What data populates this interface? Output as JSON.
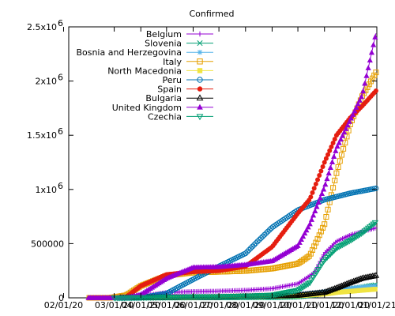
{
  "chart_data": {
    "type": "line",
    "title": "Confirmed",
    "xlabel": "",
    "ylabel": "",
    "ylim": [
      0,
      2500000
    ],
    "x_range": [
      "2020-01-08",
      "2021-01-01"
    ],
    "grid": false,
    "legend_position": "top-left",
    "y_ticks": [
      {
        "value": 0,
        "label": "0"
      },
      {
        "value": 500000,
        "label": "500000"
      },
      {
        "value": 1000000,
        "label": "1x10",
        "exp": "6"
      },
      {
        "value": 1500000,
        "label": "1.5x10",
        "exp": "6"
      },
      {
        "value": 2000000,
        "label": "2x10",
        "exp": "6"
      },
      {
        "value": 2500000,
        "label": "2.5x10",
        "exp": "6"
      }
    ],
    "x_ticks": [
      {
        "date": "2020-01-02",
        "label": "02/01/20"
      },
      {
        "date": "2020-03-01",
        "label": "03/01/20"
      },
      {
        "date": "2020-04-01",
        "label": "04/01/20"
      },
      {
        "date": "2020-05-01",
        "label": "05/01/20"
      },
      {
        "date": "2020-06-01",
        "label": "06/01/20"
      },
      {
        "date": "2020-07-01",
        "label": "07/01/20"
      },
      {
        "date": "2020-08-01",
        "label": "08/01/20"
      },
      {
        "date": "2020-09-01",
        "label": "09/01/20"
      },
      {
        "date": "2020-10-01",
        "label": "10/01/20"
      },
      {
        "date": "2020-11-01",
        "label": "11/01/20"
      },
      {
        "date": "2020-12-01",
        "label": "12/01/20"
      },
      {
        "date": "2021-01-01",
        "label": "01/01/21"
      }
    ],
    "series": [
      {
        "name": "Belgium",
        "color": "#9400d3",
        "marker": "plus",
        "points": [
          [
            "2020-03-01",
            0
          ],
          [
            "2020-03-20",
            2800
          ],
          [
            "2020-04-10",
            26000
          ],
          [
            "2020-05-01",
            49000
          ],
          [
            "2020-06-01",
            58000
          ],
          [
            "2020-07-01",
            62000
          ],
          [
            "2020-08-01",
            70000
          ],
          [
            "2020-09-01",
            85000
          ],
          [
            "2020-10-01",
            130000
          ],
          [
            "2020-10-20",
            230000
          ],
          [
            "2020-11-01",
            410000
          ],
          [
            "2020-11-15",
            520000
          ],
          [
            "2020-12-01",
            580000
          ],
          [
            "2020-12-15",
            610000
          ],
          [
            "2020-12-31",
            645000
          ]
        ]
      },
      {
        "name": "Slovenia",
        "color": "#009e73",
        "marker": "x",
        "points": [
          [
            "2020-03-05",
            0
          ],
          [
            "2020-04-15",
            1300
          ],
          [
            "2020-07-01",
            1700
          ],
          [
            "2020-09-01",
            2700
          ],
          [
            "2020-10-01",
            8000
          ],
          [
            "2020-10-20",
            25000
          ],
          [
            "2020-11-01",
            40000
          ],
          [
            "2020-11-15",
            60000
          ],
          [
            "2020-12-01",
            80000
          ],
          [
            "2020-12-15",
            100000
          ],
          [
            "2020-12-31",
            120000
          ]
        ]
      },
      {
        "name": "Bosnia and Herzegovina",
        "color": "#56b4e9",
        "marker": "star",
        "points": [
          [
            "2020-03-05",
            0
          ],
          [
            "2020-05-01",
            1800
          ],
          [
            "2020-07-01",
            6000
          ],
          [
            "2020-08-01",
            13000
          ],
          [
            "2020-09-01",
            22000
          ],
          [
            "2020-10-01",
            30000
          ],
          [
            "2020-11-01",
            55000
          ],
          [
            "2020-11-15",
            75000
          ],
          [
            "2020-12-01",
            90000
          ],
          [
            "2020-12-15",
            100000
          ],
          [
            "2020-12-31",
            110000
          ]
        ]
      },
      {
        "name": "Italy",
        "color": "#e69f00",
        "marker": "square-open",
        "points": [
          [
            "2020-02-01",
            0
          ],
          [
            "2020-02-25",
            300
          ],
          [
            "2020-03-15",
            24000
          ],
          [
            "2020-04-01",
            110000
          ],
          [
            "2020-05-01",
            205000
          ],
          [
            "2020-06-01",
            233000
          ],
          [
            "2020-07-01",
            240000
          ],
          [
            "2020-08-01",
            248000
          ],
          [
            "2020-09-01",
            270000
          ],
          [
            "2020-10-01",
            315000
          ],
          [
            "2020-10-15",
            390000
          ],
          [
            "2020-11-01",
            680000
          ],
          [
            "2020-11-15",
            1150000
          ],
          [
            "2020-12-01",
            1600000
          ],
          [
            "2020-12-15",
            1860000
          ],
          [
            "2020-12-31",
            2080000
          ]
        ]
      },
      {
        "name": "North Macedonia",
        "color": "#f0e442",
        "marker": "square",
        "points": [
          [
            "2020-02-28",
            0
          ],
          [
            "2020-04-01",
            300
          ],
          [
            "2020-06-01",
            2300
          ],
          [
            "2020-07-01",
            7000
          ],
          [
            "2020-08-01",
            11000
          ],
          [
            "2020-09-01",
            15000
          ],
          [
            "2020-10-01",
            19000
          ],
          [
            "2020-11-01",
            35000
          ],
          [
            "2020-11-15",
            50000
          ],
          [
            "2020-12-01",
            60000
          ],
          [
            "2020-12-15",
            70000
          ],
          [
            "2020-12-31",
            80000
          ]
        ]
      },
      {
        "name": "Peru",
        "color": "#0072b2",
        "marker": "circle-open",
        "points": [
          [
            "2020-03-06",
            0
          ],
          [
            "2020-04-01",
            1400
          ],
          [
            "2020-05-01",
            40000
          ],
          [
            "2020-06-01",
            170000
          ],
          [
            "2020-07-01",
            290000
          ],
          [
            "2020-08-01",
            410000
          ],
          [
            "2020-08-15",
            520000
          ],
          [
            "2020-09-01",
            650000
          ],
          [
            "2020-10-01",
            810000
          ],
          [
            "2020-11-01",
            905000
          ],
          [
            "2020-12-01",
            965000
          ],
          [
            "2020-12-31",
            1010000
          ]
        ]
      },
      {
        "name": "Spain",
        "color": "#e51e10",
        "marker": "circle",
        "points": [
          [
            "2020-02-01",
            0
          ],
          [
            "2020-03-01",
            80
          ],
          [
            "2020-03-15",
            8000
          ],
          [
            "2020-04-01",
            110000
          ],
          [
            "2020-05-01",
            215000
          ],
          [
            "2020-06-01",
            240000
          ],
          [
            "2020-07-01",
            250000
          ],
          [
            "2020-08-01",
            290000
          ],
          [
            "2020-09-01",
            470000
          ],
          [
            "2020-10-01",
            780000
          ],
          [
            "2020-10-15",
            910000
          ],
          [
            "2020-11-01",
            1250000
          ],
          [
            "2020-11-15",
            1500000
          ],
          [
            "2020-12-01",
            1660000
          ],
          [
            "2020-12-15",
            1770000
          ],
          [
            "2020-12-31",
            1910000
          ]
        ]
      },
      {
        "name": "Bulgaria",
        "color": "#000000",
        "marker": "triangle-open",
        "points": [
          [
            "2020-03-08",
            0
          ],
          [
            "2020-05-01",
            1600
          ],
          [
            "2020-07-01",
            5000
          ],
          [
            "2020-08-01",
            12000
          ],
          [
            "2020-09-01",
            16000
          ],
          [
            "2020-10-01",
            22000
          ],
          [
            "2020-11-01",
            50000
          ],
          [
            "2020-11-15",
            90000
          ],
          [
            "2020-12-01",
            140000
          ],
          [
            "2020-12-15",
            180000
          ],
          [
            "2020-12-31",
            205000
          ]
        ]
      },
      {
        "name": "United Kingdom",
        "color": "#9400d3",
        "marker": "triangle",
        "points": [
          [
            "2020-01-31",
            0
          ],
          [
            "2020-03-01",
            40
          ],
          [
            "2020-03-15",
            1400
          ],
          [
            "2020-04-01",
            30000
          ],
          [
            "2020-05-01",
            180000
          ],
          [
            "2020-06-01",
            280000
          ],
          [
            "2020-07-01",
            285000
          ],
          [
            "2020-08-01",
            305000
          ],
          [
            "2020-09-01",
            340000
          ],
          [
            "2020-10-01",
            480000
          ],
          [
            "2020-10-15",
            680000
          ],
          [
            "2020-11-01",
            1020000
          ],
          [
            "2020-11-15",
            1380000
          ],
          [
            "2020-12-01",
            1640000
          ],
          [
            "2020-12-15",
            1870000
          ],
          [
            "2020-12-31",
            2440000
          ]
        ]
      },
      {
        "name": "Czechia",
        "color": "#009e73",
        "marker": "triangle-down-open",
        "points": [
          [
            "2020-03-01",
            0
          ],
          [
            "2020-04-01",
            3300
          ],
          [
            "2020-06-01",
            9500
          ],
          [
            "2020-07-01",
            12000
          ],
          [
            "2020-08-01",
            17000
          ],
          [
            "2020-09-01",
            25000
          ],
          [
            "2020-10-01",
            70000
          ],
          [
            "2020-10-15",
            140000
          ],
          [
            "2020-11-01",
            350000
          ],
          [
            "2020-11-15",
            460000
          ],
          [
            "2020-12-01",
            530000
          ],
          [
            "2020-12-15",
            600000
          ],
          [
            "2020-12-31",
            700000
          ]
        ]
      }
    ]
  }
}
